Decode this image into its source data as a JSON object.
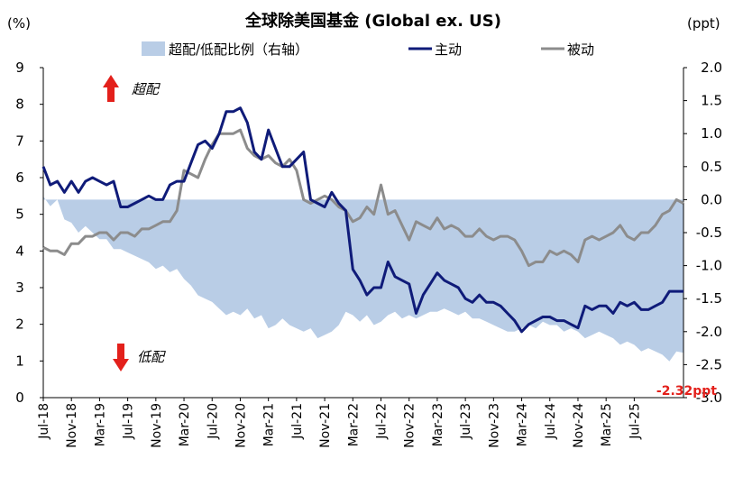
{
  "chart_data": {
    "type": "line",
    "title": "全球除美国基金 (Global ex. US)",
    "left_unit": "(%)",
    "right_unit": "(ppt)",
    "ylim_left": [
      0,
      9
    ],
    "ylim_right": [
      -3.0,
      2.0
    ],
    "y_ticks_left": [
      "0",
      "1",
      "2",
      "3",
      "4",
      "5",
      "6",
      "7",
      "8",
      "9"
    ],
    "y_ticks_right": [
      "-3.0",
      "-2.5",
      "-2.0",
      "-1.5",
      "-1.0",
      "-0.5",
      "0.0",
      "0.5",
      "1.0",
      "1.5",
      "2.0"
    ],
    "x_ticks": [
      "Jul-18",
      "Nov-18",
      "Mar-19",
      "Jul-19",
      "Nov-19",
      "Mar-20",
      "Jul-20",
      "Nov-20",
      "Mar-21",
      "Jul-21",
      "Nov-21",
      "Mar-22",
      "Jul-22",
      "Nov-22",
      "Mar-23",
      "Jul-23",
      "Nov-23",
      "Mar-24",
      "Jul-24",
      "Nov-24",
      "Mar-25",
      "Jul-25"
    ],
    "legend": [
      "超配/低配比例（右轴）",
      "主动",
      "被动"
    ],
    "colors": {
      "area": "#b9cde6",
      "active": "#0f1b79",
      "passive": "#8c8c8c",
      "arrow": "#e3201b",
      "end_label": "#e3201b"
    },
    "annotations": {
      "overweight": "超配",
      "underweight": "低配",
      "end_value": "-2.32ppt"
    },
    "series": [
      {
        "name": "主动",
        "axis": "left",
        "values": [
          6.3,
          5.8,
          5.9,
          5.6,
          5.9,
          5.6,
          5.9,
          6.0,
          5.9,
          5.8,
          5.9,
          5.2,
          5.2,
          5.3,
          5.4,
          5.5,
          5.4,
          5.4,
          5.8,
          5.9,
          5.9,
          6.4,
          6.9,
          7.0,
          6.8,
          7.2,
          7.8,
          7.8,
          7.9,
          7.5,
          6.7,
          6.5,
          7.3,
          6.8,
          6.3,
          6.3,
          6.5,
          6.7,
          5.4,
          5.3,
          5.2,
          5.6,
          5.3,
          5.1,
          3.5,
          3.2,
          2.8,
          3.0,
          3.0,
          3.7,
          3.3,
          3.2,
          3.1,
          2.3,
          2.8,
          3.1,
          3.4,
          3.2,
          3.1,
          3.0,
          2.7,
          2.6,
          2.8,
          2.6,
          2.6,
          2.5,
          2.3,
          2.1,
          1.8,
          2.0,
          2.1,
          2.2,
          2.2,
          2.1,
          2.1,
          2.0,
          1.9,
          2.5,
          2.4,
          2.5,
          2.5,
          2.3,
          2.6,
          2.5,
          2.6,
          2.4,
          2.4,
          2.5,
          2.6,
          2.9,
          2.9,
          2.9
        ]
      },
      {
        "name": "被动",
        "axis": "left",
        "values": [
          4.1,
          4.0,
          4.0,
          3.9,
          4.2,
          4.2,
          4.4,
          4.4,
          4.5,
          4.5,
          4.3,
          4.5,
          4.5,
          4.4,
          4.6,
          4.6,
          4.7,
          4.8,
          4.8,
          5.1,
          6.2,
          6.1,
          6.0,
          6.5,
          6.9,
          7.2,
          7.2,
          7.2,
          7.3,
          6.8,
          6.6,
          6.5,
          6.6,
          6.4,
          6.3,
          6.5,
          6.2,
          5.4,
          5.3,
          5.4,
          5.5,
          5.4,
          5.2,
          5.1,
          4.8,
          4.9,
          5.2,
          5.0,
          5.8,
          5.0,
          5.1,
          4.7,
          4.3,
          4.8,
          4.7,
          4.6,
          4.9,
          4.6,
          4.7,
          4.6,
          4.4,
          4.4,
          4.6,
          4.4,
          4.3,
          4.4,
          4.4,
          4.3,
          4.0,
          3.6,
          3.7,
          3.7,
          4.0,
          3.9,
          4.0,
          3.9,
          3.7,
          4.3,
          4.4,
          4.3,
          4.4,
          4.5,
          4.7,
          4.4,
          4.3,
          4.5,
          4.5,
          4.7,
          5.0,
          5.1,
          5.4,
          5.3
        ]
      },
      {
        "name": "超配/低配比例（右轴）",
        "axis": "right",
        "values": [
          0.05,
          -0.1,
          0.0,
          -0.3,
          -0.35,
          -0.5,
          -0.4,
          -0.5,
          -0.6,
          -0.6,
          -0.75,
          -0.75,
          -0.8,
          -0.85,
          -0.9,
          -0.95,
          -1.05,
          -1.0,
          -1.1,
          -1.05,
          -1.2,
          -1.3,
          -1.45,
          -1.5,
          -1.55,
          -1.65,
          -1.75,
          -1.7,
          -1.75,
          -1.65,
          -1.8,
          -1.75,
          -1.95,
          -1.9,
          -1.8,
          -1.9,
          -1.95,
          -2.0,
          -1.95,
          -2.1,
          -2.05,
          -2.0,
          -1.9,
          -1.7,
          -1.75,
          -1.85,
          -1.75,
          -1.9,
          -1.85,
          -1.75,
          -1.7,
          -1.8,
          -1.75,
          -1.8,
          -1.75,
          -1.7,
          -1.7,
          -1.65,
          -1.7,
          -1.75,
          -1.7,
          -1.8,
          -1.8,
          -1.85,
          -1.9,
          -1.95,
          -2.0,
          -2.0,
          -1.95,
          -1.9,
          -1.95,
          -1.85,
          -1.9,
          -1.9,
          -2.0,
          -1.95,
          -2.0,
          -2.1,
          -2.05,
          -2.0,
          -2.05,
          -2.1,
          -2.2,
          -2.15,
          -2.2,
          -2.3,
          -2.25,
          -2.3,
          -2.35,
          -2.45,
          -2.3,
          -2.32
        ]
      }
    ]
  }
}
